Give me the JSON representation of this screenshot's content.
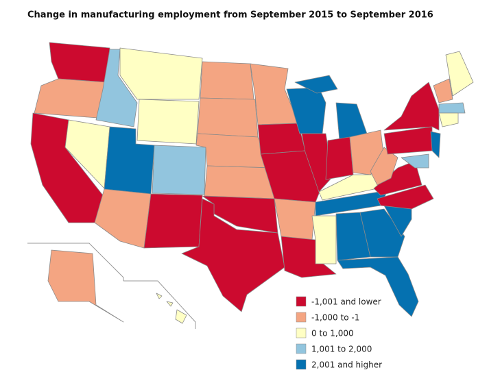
{
  "title": "Change in manufacturing employment from September 2015 to September 2016",
  "legend": [
    {
      "label": "-1,001 and lower",
      "color": "#cc0a2f"
    },
    {
      "label": "-1,000 to -1",
      "color": "#f4a582"
    },
    {
      "label": "0 to 1,000",
      "color": "#ffffc4"
    },
    {
      "label": "1,001 to 2,000",
      "color": "#92c5de"
    },
    {
      "label": "2,001 and higher",
      "color": "#0571b0"
    }
  ]
}
